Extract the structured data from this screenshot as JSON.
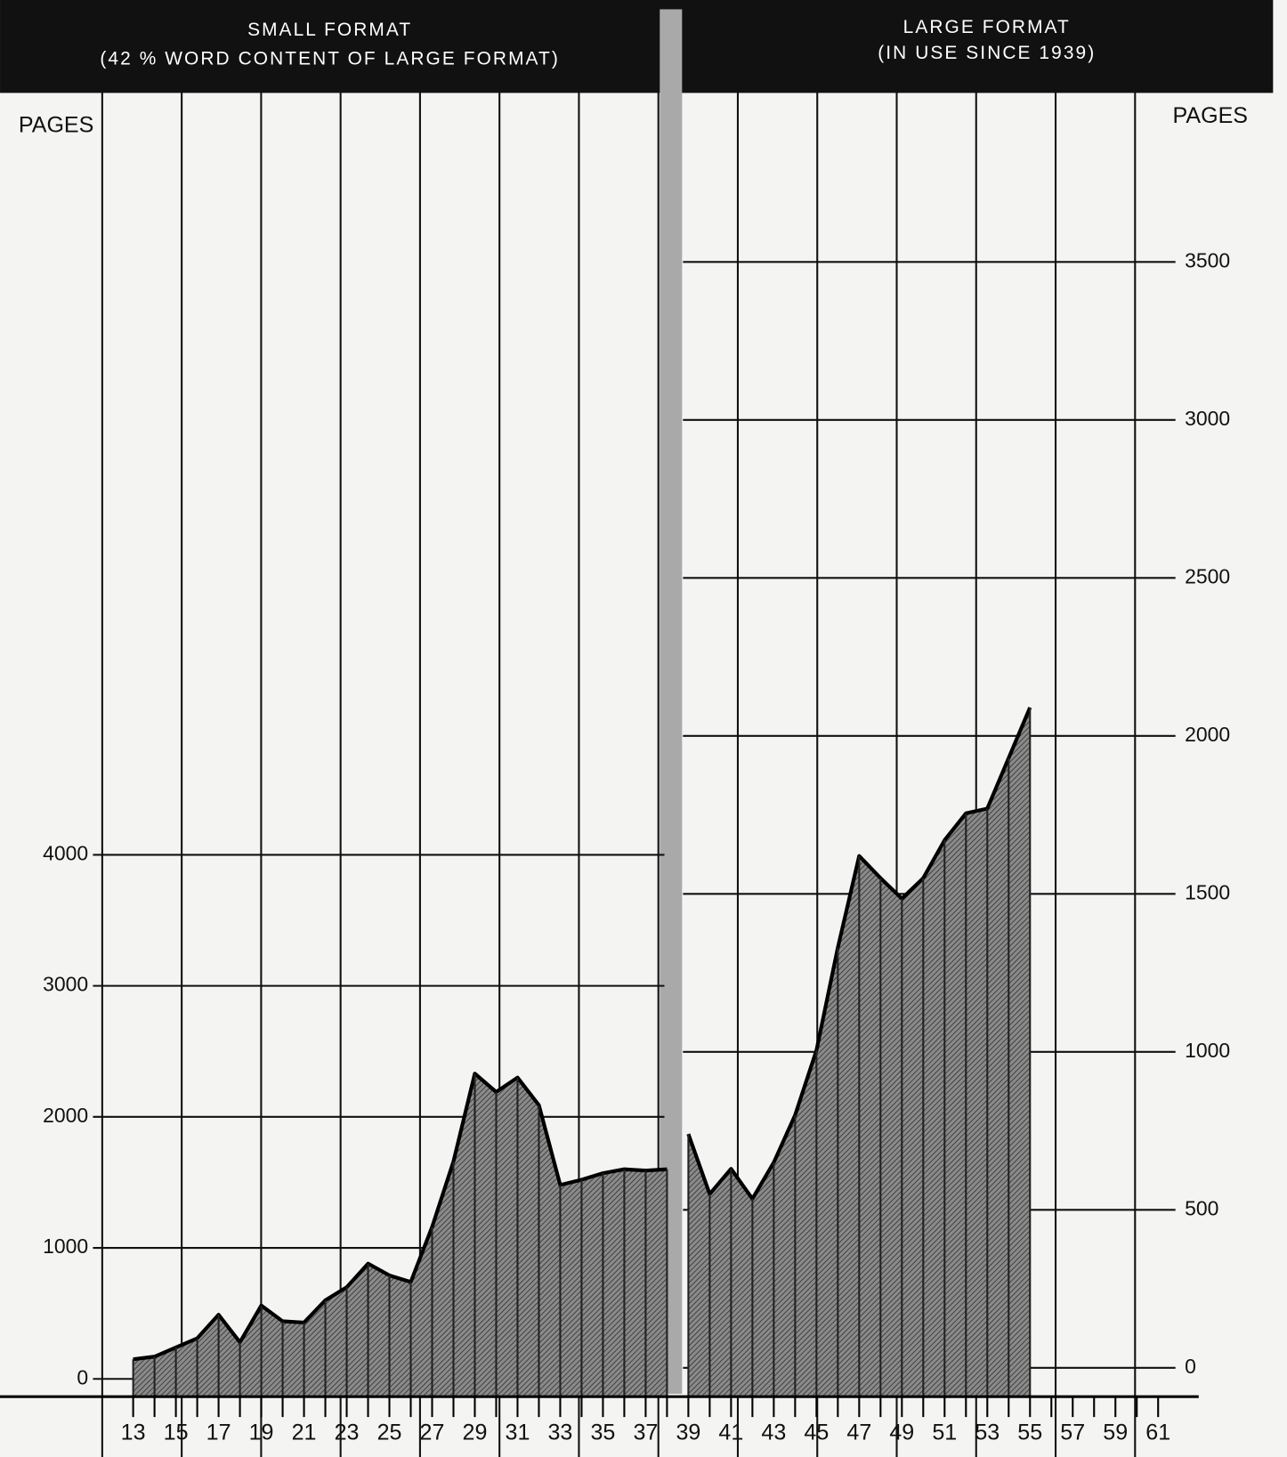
{
  "chart_data": {
    "type": "area",
    "left_title": "SMALL FORMAT",
    "left_subtitle": "(42 % WORD CONTENT OF LARGE FORMAT)",
    "right_title": "LARGE FORMAT",
    "right_subtitle": "(IN USE SINCE 1939)",
    "ylabel": "PAGES",
    "y2label": "PAGES",
    "x": [
      13,
      14,
      15,
      16,
      17,
      18,
      19,
      20,
      21,
      22,
      23,
      24,
      25,
      26,
      27,
      28,
      29,
      30,
      31,
      32,
      33,
      34,
      35,
      36,
      37,
      38,
      39,
      40,
      41,
      42,
      43,
      44,
      45,
      46,
      47,
      48,
      49,
      50,
      51,
      52,
      53,
      54,
      55
    ],
    "series": [
      {
        "name": "SMALL FORMAT",
        "color": "#6e6e6e",
        "axis": "y",
        "values": [
          150,
          170,
          240,
          310,
          490,
          280,
          560,
          440,
          430,
          600,
          700,
          880,
          790,
          740,
          1160,
          1660,
          2330,
          2190,
          2300,
          2090,
          1480,
          1520,
          1570,
          1600,
          1590,
          1600,
          null,
          null,
          null,
          null,
          null,
          null,
          null,
          null,
          null,
          null,
          null,
          null,
          null,
          null,
          null,
          null,
          null
        ]
      },
      {
        "name": "LARGE FORMAT",
        "color": "#6e6e6e",
        "axis": "y2",
        "values": [
          null,
          null,
          null,
          null,
          null,
          null,
          null,
          null,
          null,
          null,
          null,
          null,
          null,
          null,
          null,
          null,
          null,
          null,
          null,
          null,
          null,
          null,
          null,
          null,
          null,
          null,
          740,
          550,
          630,
          535,
          650,
          800,
          1005,
          1330,
          1620,
          1550,
          1485,
          1550,
          1670,
          1755,
          1770,
          1930,
          2090
        ]
      }
    ],
    "xlim": [
      7.2,
      62.9
    ],
    "xticks": [
      13,
      15,
      17,
      19,
      21,
      23,
      25,
      27,
      29,
      31,
      33,
      35,
      37,
      39,
      41,
      43,
      45,
      47,
      49,
      51,
      53,
      55,
      57,
      59,
      61
    ],
    "ylim": [
      -135,
      9815
    ],
    "yticks": [
      0,
      1000,
      2000,
      3000,
      4000
    ],
    "y2lim": [
      -91,
      4035
    ],
    "y2ticks": [
      0,
      500,
      1000,
      1500,
      2000,
      2500,
      3000,
      3500
    ],
    "grid": true
  }
}
